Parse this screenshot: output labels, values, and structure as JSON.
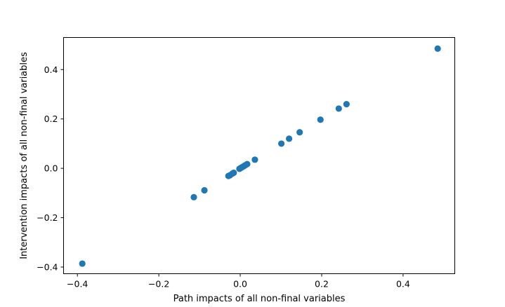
{
  "chart_data": {
    "type": "scatter",
    "title": "",
    "xlabel": "Path impacts of all non-final variables",
    "ylabel": "Intervention impacts of all non-final variables",
    "xlim": [
      -0.434,
      0.527
    ],
    "ylim": [
      -0.427,
      0.53
    ],
    "xticks": [
      -0.4,
      -0.2,
      0.0,
      0.2,
      0.4
    ],
    "yticks": [
      -0.4,
      -0.2,
      0.0,
      0.2,
      0.4
    ],
    "xtick_labels": [
      "−0.4",
      "−0.2",
      "0.0",
      "0.2",
      "0.4"
    ],
    "ytick_labels": [
      "−0.4",
      "−0.2",
      "0.0",
      "0.2",
      "0.4"
    ],
    "grid": false,
    "legend": "none",
    "marker_color": "#1f77b4",
    "points": [
      {
        "x": -0.388,
        "y": -0.386
      },
      {
        "x": -0.114,
        "y": -0.117
      },
      {
        "x": -0.088,
        "y": -0.089
      },
      {
        "x": -0.029,
        "y": -0.031
      },
      {
        "x": -0.025,
        "y": -0.028
      },
      {
        "x": -0.019,
        "y": -0.021
      },
      {
        "x": -0.016,
        "y": -0.018
      },
      {
        "x": -0.002,
        "y": -0.002
      },
      {
        "x": 0.001,
        "y": 0.001
      },
      {
        "x": 0.004,
        "y": 0.004
      },
      {
        "x": 0.008,
        "y": 0.008
      },
      {
        "x": 0.012,
        "y": 0.012
      },
      {
        "x": 0.017,
        "y": 0.017
      },
      {
        "x": 0.036,
        "y": 0.035
      },
      {
        "x": 0.101,
        "y": 0.1
      },
      {
        "x": 0.12,
        "y": 0.12
      },
      {
        "x": 0.146,
        "y": 0.146
      },
      {
        "x": 0.197,
        "y": 0.197
      },
      {
        "x": 0.242,
        "y": 0.242
      },
      {
        "x": 0.261,
        "y": 0.26
      },
      {
        "x": 0.485,
        "y": 0.485
      }
    ]
  }
}
